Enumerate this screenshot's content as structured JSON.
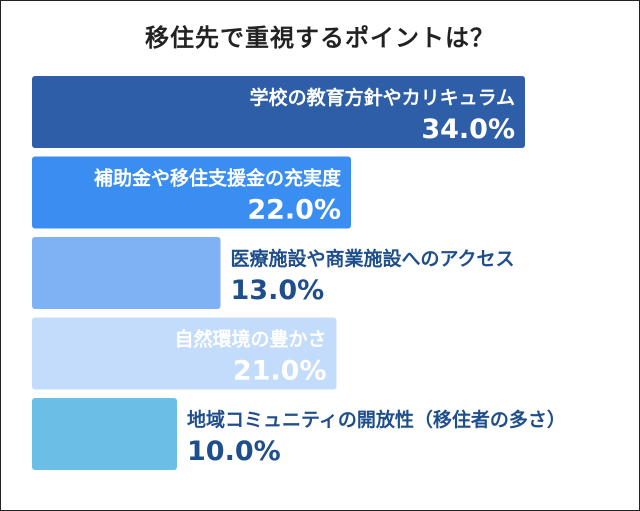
{
  "chart_data": {
    "type": "bar",
    "orientation": "horizontal",
    "title": "移住先で重視するポイントは？",
    "categories": [
      "学校の教育方針やカリキュラム",
      "補助金や移住支援金の充実度",
      "医療施設や商業施設へのアクセス",
      "自然環境の豊かさ",
      "地域コミュニティの開放性（移住者の多さ）"
    ],
    "values": [
      34.0,
      22.0,
      13.0,
      21.0,
      10.0
    ],
    "value_labels": [
      "34.0%",
      "22.0%",
      "13.0%",
      "21.0%",
      "10.0%"
    ],
    "unit": "%",
    "xlim": [
      0,
      34
    ],
    "colors": [
      "#2e5ea8",
      "#3a8ef2",
      "#7fb2f5",
      "#c3dcfb",
      "#6bbfe6"
    ],
    "label_colors_inside": "#ffffff",
    "label_colors_outside": "#1f4e8c",
    "grid": false,
    "legend": "none"
  }
}
